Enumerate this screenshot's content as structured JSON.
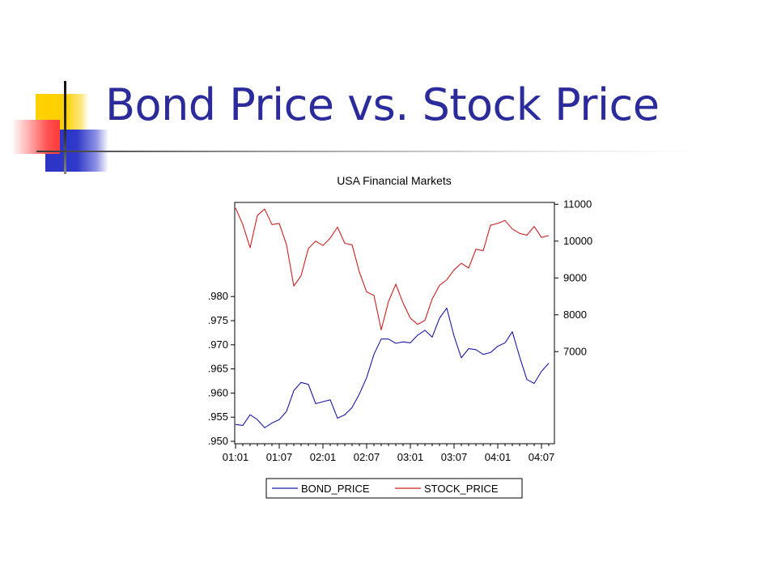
{
  "slide": {
    "title": "Bond Price vs. Stock Price"
  },
  "colors": {
    "title": "#2b2b9c",
    "bond_series": "#1a1aa0",
    "stock_series": "#cc2020"
  },
  "chart_data": {
    "type": "line",
    "title": "USA Financial Markets",
    "x_tick_labels": [
      "01:01",
      "01:07",
      "02:01",
      "02:07",
      "03:01",
      "03:07",
      "04:01",
      "04:07"
    ],
    "x": [
      "01:01",
      "01:02",
      "01:03",
      "01:04",
      "01:05",
      "01:06",
      "01:07",
      "01:08",
      "01:09",
      "01:10",
      "01:11",
      "01:12",
      "02:01",
      "02:02",
      "02:03",
      "02:04",
      "02:05",
      "02:06",
      "02:07",
      "02:08",
      "02:09",
      "02:10",
      "02:11",
      "02:12",
      "03:01",
      "03:02",
      "03:03",
      "03:04",
      "03:05",
      "03:06",
      "03:07",
      "03:08",
      "03:09",
      "03:10",
      "03:11",
      "03:12",
      "04:01",
      "04:02",
      "04:03",
      "04:04",
      "04:05",
      "04:06",
      "04:07",
      "04:08"
    ],
    "left_axis": {
      "ticks": [
        0.95,
        0.955,
        0.96,
        0.965,
        0.97,
        0.975,
        0.98
      ],
      "tick_labels": [
        ".950",
        ".955",
        ".960",
        ".965",
        ".970",
        ".975",
        ".980"
      ],
      "ylim": [
        0.9495,
        0.9995
      ]
    },
    "right_axis": {
      "ticks": [
        7000,
        8000,
        9000,
        10000,
        11000
      ],
      "tick_labels": [
        "7000",
        "8000",
        "9000",
        "10000",
        "11000"
      ],
      "ylim": [
        4500,
        11050
      ]
    },
    "series": [
      {
        "name": "BOND_PRICE",
        "axis": "left",
        "values": [
          0.9535,
          0.9533,
          0.9555,
          0.9545,
          0.9528,
          0.9538,
          0.9545,
          0.9562,
          0.9605,
          0.9622,
          0.9618,
          0.9578,
          0.9582,
          0.9586,
          0.9548,
          0.9555,
          0.957,
          0.9598,
          0.9632,
          0.968,
          0.9712,
          0.9712,
          0.9703,
          0.9706,
          0.9704,
          0.972,
          0.973,
          0.9716,
          0.9755,
          0.9776,
          0.9718,
          0.9673,
          0.9692,
          0.969,
          0.968,
          0.9684,
          0.9697,
          0.9704,
          0.9727,
          0.9675,
          0.9628,
          0.962,
          0.9645,
          0.9662
        ]
      },
      {
        "name": "STOCK_PRICE",
        "axis": "right",
        "values": [
          10900,
          10450,
          9820,
          10700,
          10870,
          10450,
          10480,
          9900,
          8780,
          9060,
          9800,
          10000,
          9880,
          10080,
          10380,
          9940,
          9900,
          9160,
          8620,
          8530,
          7590,
          8360,
          8830,
          8320,
          7910,
          7740,
          7850,
          8430,
          8800,
          8950,
          9220,
          9400,
          9270,
          9780,
          9740,
          10430,
          10480,
          10560,
          10330,
          10210,
          10160,
          10400,
          10100,
          10150
        ]
      }
    ],
    "legend": {
      "placement": "bottom-center"
    }
  }
}
